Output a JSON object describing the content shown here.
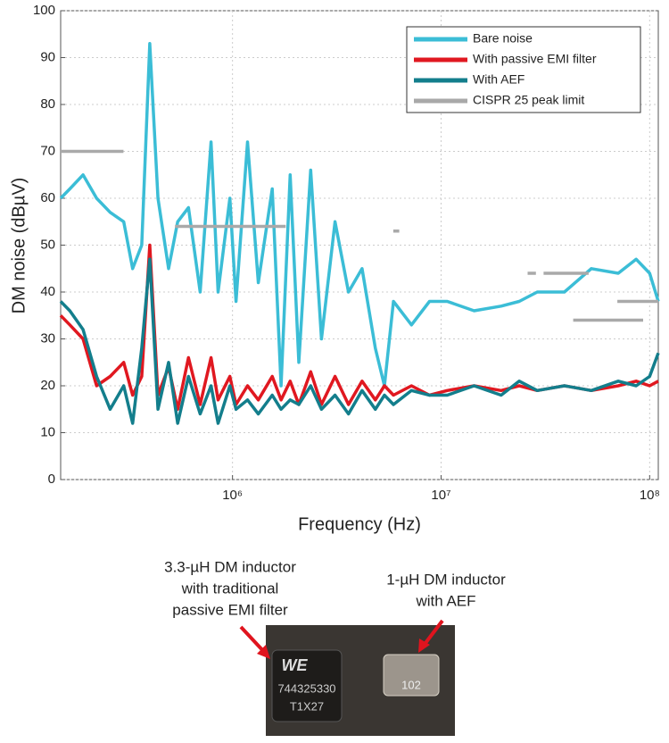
{
  "chart_data": {
    "type": "line",
    "ylabel": "DM noise (dBµV)",
    "xlabel": "Frequency (Hz)",
    "xscale": "log",
    "grid": true,
    "legend": "upper right",
    "xlim": [
      150000,
      110000000
    ],
    "ylim": [
      0,
      100
    ],
    "yticks": [
      0,
      10,
      20,
      30,
      40,
      50,
      60,
      70,
      80,
      90,
      100
    ],
    "xticks": [
      {
        "value": 1000000,
        "label": "10⁶"
      },
      {
        "value": 10000000,
        "label": "10⁷"
      },
      {
        "value": 100000000,
        "label": "10⁸"
      }
    ],
    "x": [
      150000,
      166000,
      192000,
      223000,
      259000,
      301000,
      332000,
      367000,
      401000,
      439000,
      494000,
      546000,
      615000,
      700000,
      789000,
      853000,
      971000,
      1040000,
      1180000,
      1330000,
      1550000,
      1710000,
      1890000,
      2080000,
      2370000,
      2670000,
      3100000,
      3600000,
      4180000,
      4840000,
      5350000,
      5910000,
      7210000,
      8800000,
      10700000,
      14400000,
      19400000,
      23700000,
      28900000,
      39000000,
      52500000,
      70700000,
      86200000,
      100000000,
      110000000
    ],
    "series": [
      {
        "name": "Bare noise",
        "color": "#3bbdd6",
        "values": [
          60,
          62,
          65,
          60,
          57,
          55,
          45,
          50,
          93,
          60,
          45,
          55,
          58,
          40,
          72,
          40,
          60,
          38,
          72,
          42,
          62,
          20,
          65,
          25,
          66,
          30,
          55,
          40,
          45,
          28,
          20,
          38,
          33,
          38,
          38,
          36,
          37,
          38,
          40,
          40,
          45,
          44,
          47,
          44,
          38
        ]
      },
      {
        "name": "With passive EMI filter",
        "color": "#e01820",
        "values": [
          35,
          33,
          30,
          20,
          22,
          25,
          18,
          22,
          50,
          18,
          24,
          15,
          26,
          16,
          26,
          17,
          22,
          16,
          20,
          17,
          22,
          17,
          21,
          16,
          23,
          16,
          22,
          16,
          21,
          17,
          20,
          18,
          20,
          18,
          19,
          20,
          19,
          20,
          19,
          20,
          19,
          20,
          21,
          20,
          21
        ]
      },
      {
        "name": "With AEF",
        "color": "#137e8c",
        "values": [
          38,
          36,
          32,
          22,
          15,
          20,
          12,
          28,
          47,
          15,
          25,
          12,
          22,
          14,
          20,
          12,
          20,
          15,
          17,
          14,
          18,
          15,
          17,
          16,
          20,
          15,
          18,
          14,
          19,
          15,
          18,
          16,
          19,
          18,
          18,
          20,
          18,
          21,
          19,
          20,
          19,
          21,
          20,
          22,
          27
        ]
      },
      {
        "name": "CISPR 25 peak limit",
        "color": "#a9a9a9",
        "x": [
          150000,
          300000,
          350000,
          530000,
          1800000,
          3000000,
          5900000,
          6300000,
          10000000,
          26000000,
          28500000,
          29500000,
          31000000,
          51000000,
          60000000,
          43000000,
          93000000,
          95000000,
          70000000,
          110000000
        ],
        "values": [
          70,
          70,
          null,
          54,
          54,
          null,
          53,
          53,
          null,
          44,
          44,
          null,
          44,
          44,
          null,
          34,
          34,
          null,
          38,
          38
        ]
      }
    ]
  },
  "photo": {
    "left_caption": [
      "3.3-µH DM inductor",
      "with traditional",
      "passive EMI filter"
    ],
    "right_caption": [
      "1-µH DM inductor",
      "with AEF"
    ],
    "left_chip": [
      "WE",
      "744325330",
      "T1X27"
    ],
    "right_chip": "102"
  }
}
